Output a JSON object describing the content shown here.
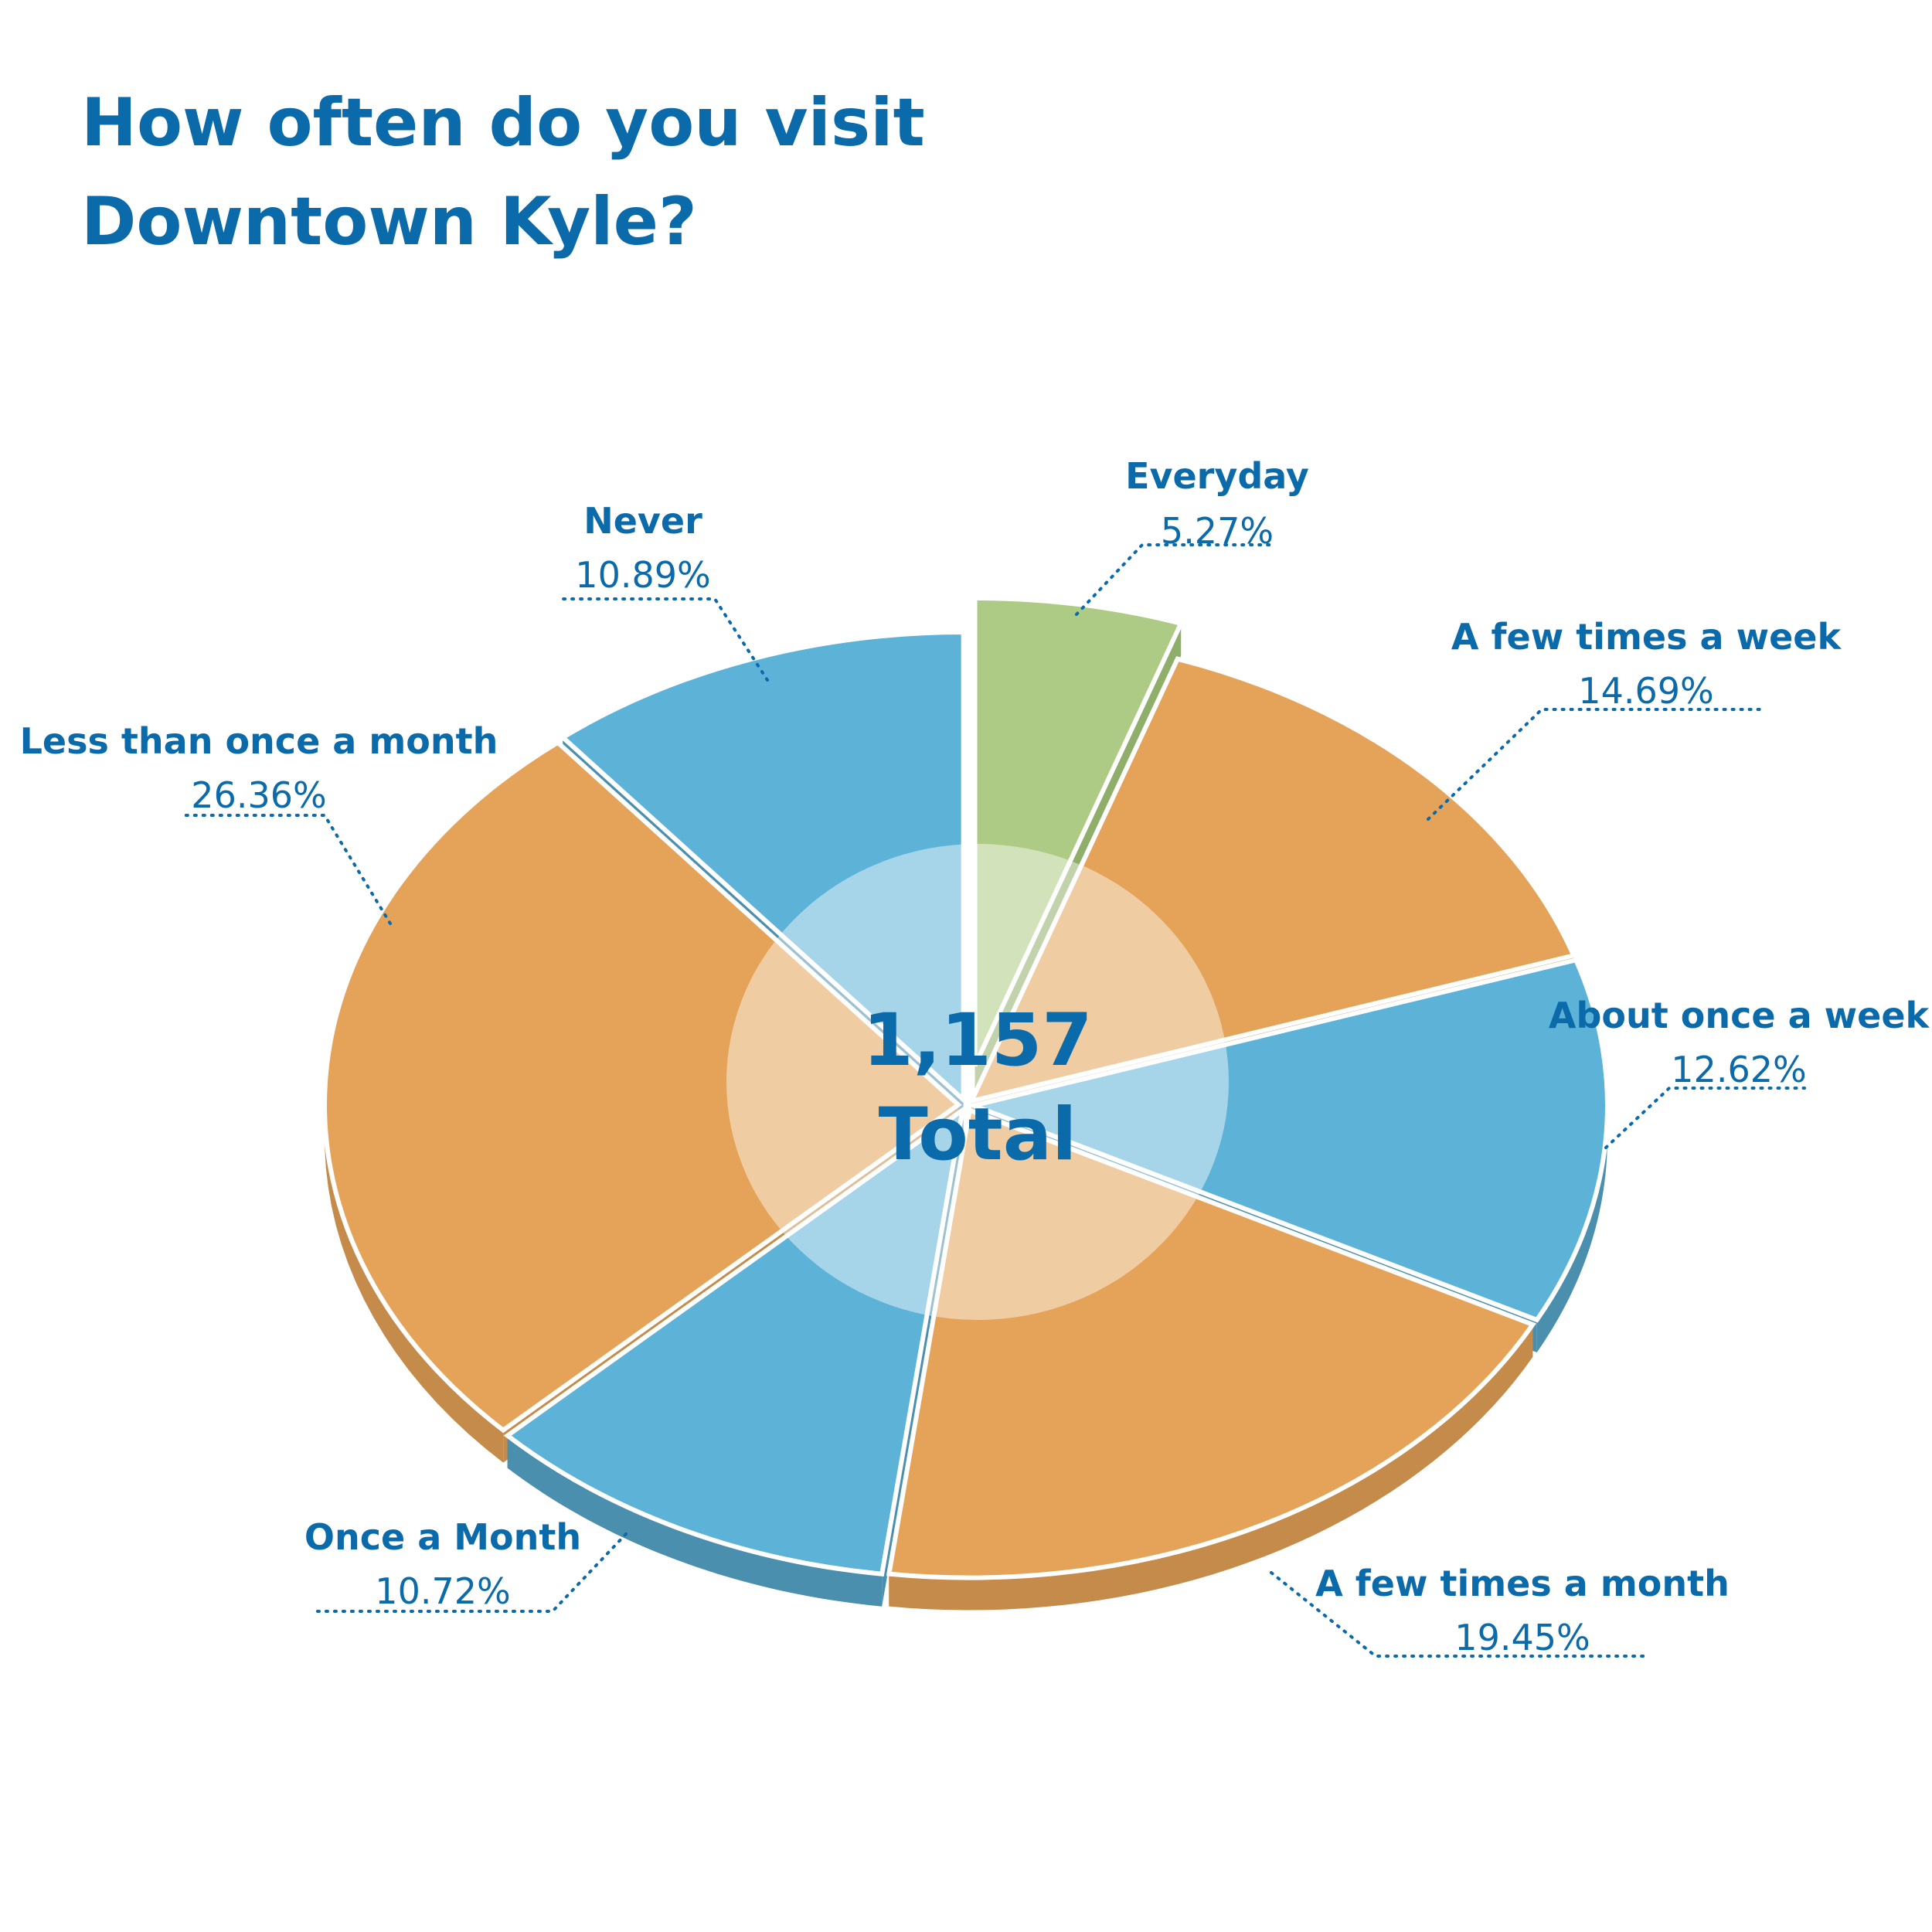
{
  "title_lines": [
    "How often do you visit",
    "Downtown Kyle?"
  ],
  "center": {
    "value": "1,157",
    "label": "Total"
  },
  "colors": {
    "title": "#0b6aa9",
    "blue": "#5db2d8",
    "orange": "#e4a358",
    "green": "#adcb84",
    "center_disc": "#ffffff"
  },
  "chart_data": {
    "type": "pie",
    "title": "How often do you visit Downtown Kyle?",
    "total": 1157,
    "slices": [
      {
        "name": "Everyday",
        "value": 5.27,
        "label": "5.27%",
        "color": "green",
        "exploded": true
      },
      {
        "name": "A few times a week",
        "value": 14.69,
        "label": "14.69%",
        "color": "orange"
      },
      {
        "name": "About once a week",
        "value": 12.62,
        "label": "12.62%",
        "color": "blue"
      },
      {
        "name": "A few times a month",
        "value": 19.45,
        "label": "19.45%",
        "color": "orange"
      },
      {
        "name": "Once a Month",
        "value": 10.72,
        "label": "10.72%",
        "color": "blue"
      },
      {
        "name": "Less than once a month",
        "value": 26.36,
        "label": "26.36%",
        "color": "orange"
      },
      {
        "name": "Never",
        "value": 10.89,
        "label": "10.89%",
        "color": "blue"
      }
    ]
  }
}
